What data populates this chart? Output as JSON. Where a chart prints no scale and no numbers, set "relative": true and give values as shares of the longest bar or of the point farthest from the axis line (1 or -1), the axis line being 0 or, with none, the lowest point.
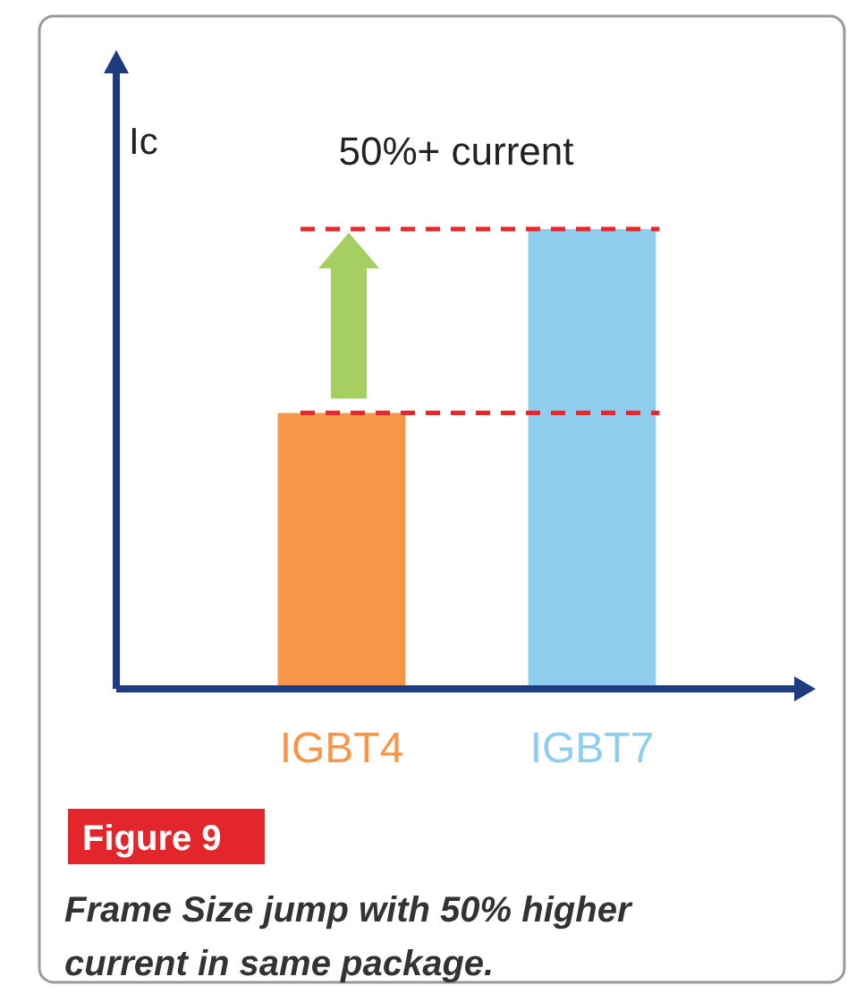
{
  "chart_data": {
    "type": "bar",
    "title": "Figure 9",
    "ylabel": "Ic",
    "relative": true,
    "categories": [
      "IGBT4",
      "IGBT7"
    ],
    "values": [
      0.6,
      1
    ],
    "colors": [
      "#f79646",
      "#8ecdee"
    ],
    "ref_lines": [
      {
        "axis": "y",
        "value": 0.6,
        "color": "#e8262b",
        "line_style": "dashed"
      },
      {
        "axis": "y",
        "value": 1,
        "color": "#e8262b",
        "line_style": "dashed"
      }
    ],
    "annotations": [
      "50%+ current",
      "Frame Size jump with 50% higher current in same package."
    ]
  }
}
